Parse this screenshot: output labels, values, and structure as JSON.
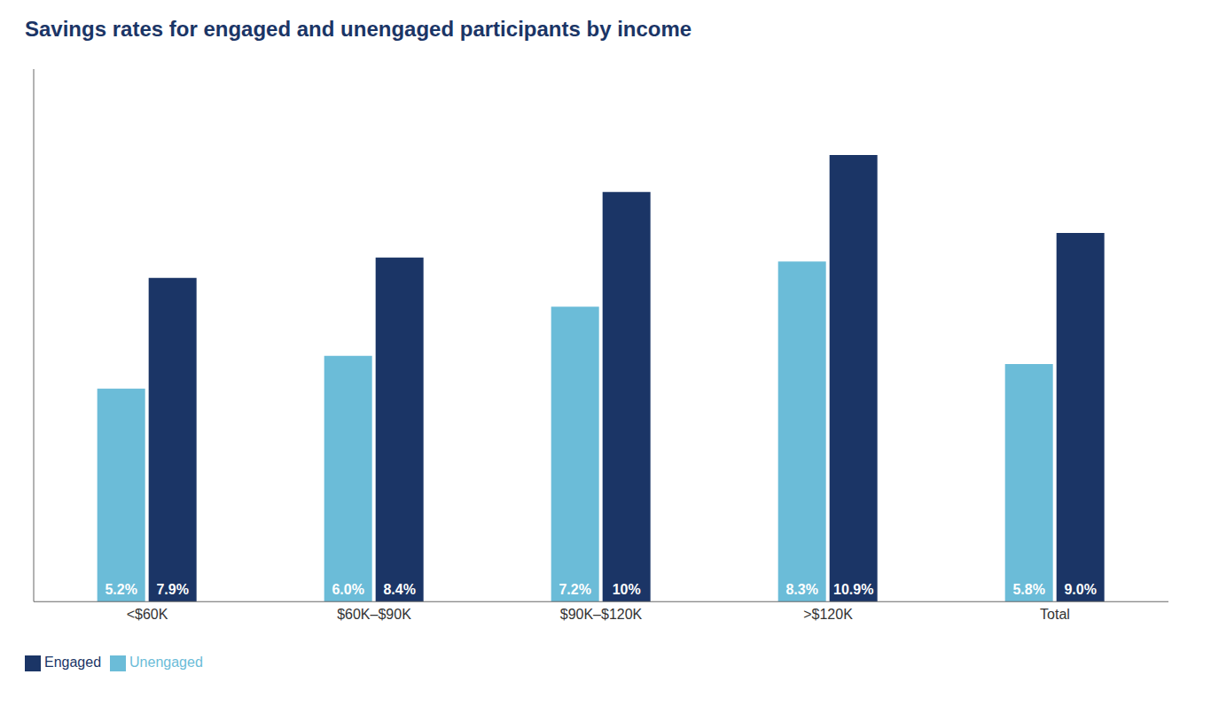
{
  "chart_data": {
    "type": "bar",
    "title": "Savings rates for engaged and unengaged participants by income",
    "categories": [
      "<$60K",
      "$60K–$90K",
      "$90K–$120K",
      ">$120K",
      "Total"
    ],
    "series": [
      {
        "name": "Unengaged",
        "color": "#6BBCD8",
        "values": [
          5.2,
          6.0,
          7.2,
          8.3,
          5.8
        ],
        "value_labels": [
          "5.2%",
          "6.0%",
          "7.2%",
          "8.3%",
          "5.8%"
        ]
      },
      {
        "name": "Engaged",
        "color": "#1B3566",
        "values": [
          7.9,
          8.4,
          10.0,
          10.9,
          9.0
        ],
        "value_labels": [
          "7.9%",
          "8.4%",
          "10%",
          "10.9%",
          "9.0%"
        ]
      }
    ],
    "ylim": [
      0,
      13
    ],
    "grid": false,
    "legend": "lower left",
    "data_labels": true,
    "tick_labels": "x"
  }
}
